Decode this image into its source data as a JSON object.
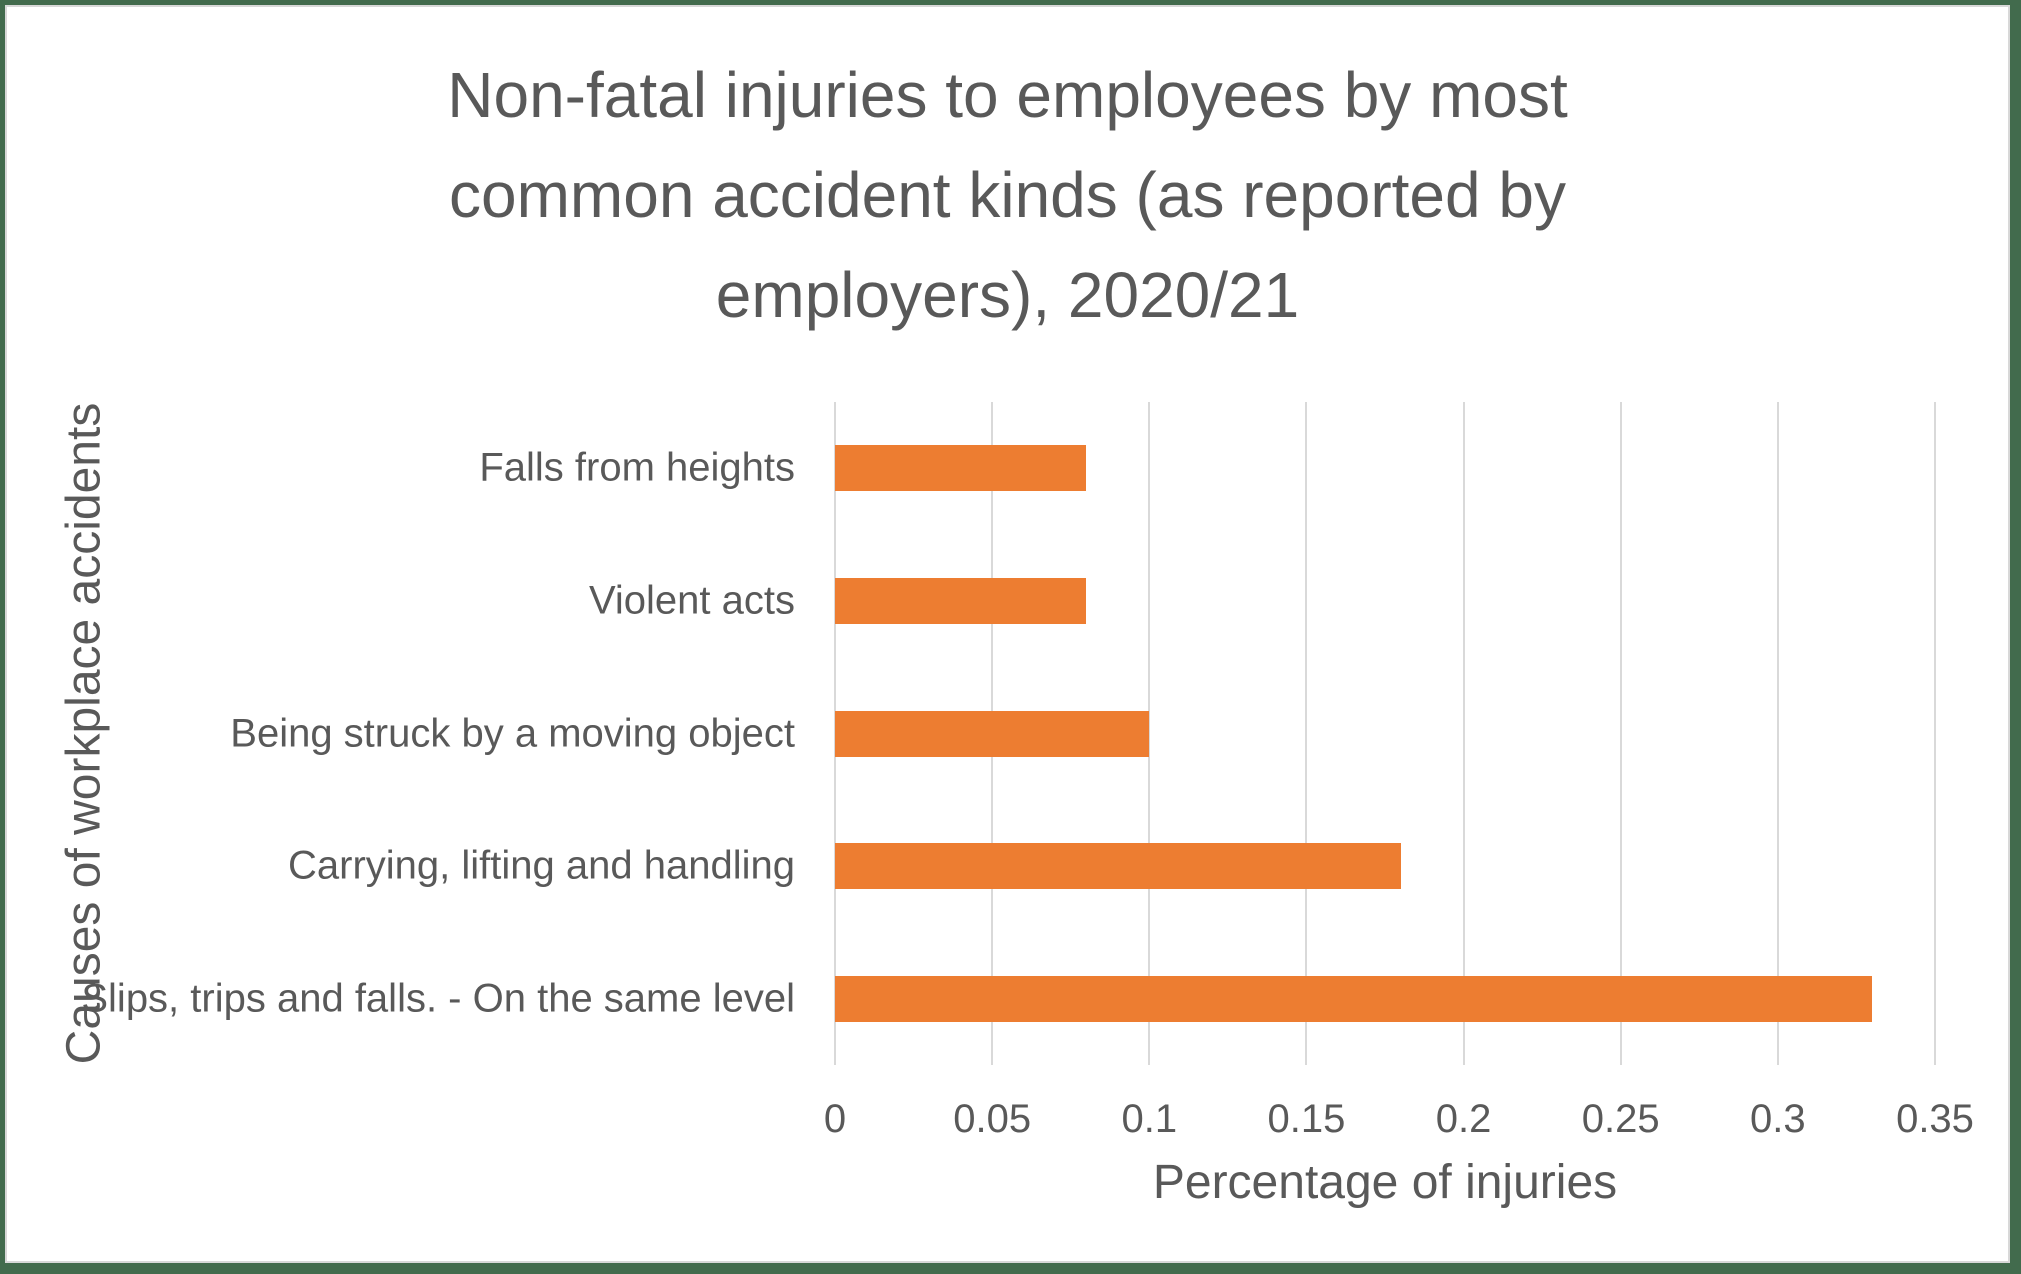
{
  "chart_data": {
    "type": "bar",
    "orientation": "horizontal",
    "title": "Non-fatal injuries to employees by most common accident kinds (as reported by employers), 2020/21",
    "title_lines": [
      "Non-fatal injuries to employees by most",
      "common accident kinds (as reported by",
      "employers), 2020/21"
    ],
    "categories": [
      "Falls from heights",
      "Violent acts",
      "Being struck by a moving object",
      "Carrying, lifting and handling",
      "Slips, trips and falls. - On the same level"
    ],
    "values": [
      0.08,
      0.08,
      0.1,
      0.18,
      0.33
    ],
    "xlabel": "Percentage of injuries",
    "ylabel": "Causes of workplace accidents",
    "xlim": [
      0,
      0.35
    ],
    "xticks": [
      0,
      0.05,
      0.1,
      0.15,
      0.2,
      0.25,
      0.3,
      0.35
    ],
    "xtick_labels": [
      "0",
      "0.05",
      "0.1",
      "0.15",
      "0.2",
      "0.25",
      "0.3",
      "0.35"
    ],
    "grid": true,
    "legend": false,
    "colors": {
      "bar": "#ED7D31",
      "gridline": "#D9D9D9",
      "text": "#595959",
      "frame_border": "#426B4D",
      "inner_border": "#D8D8D8",
      "background": "#FFFFFF"
    }
  }
}
